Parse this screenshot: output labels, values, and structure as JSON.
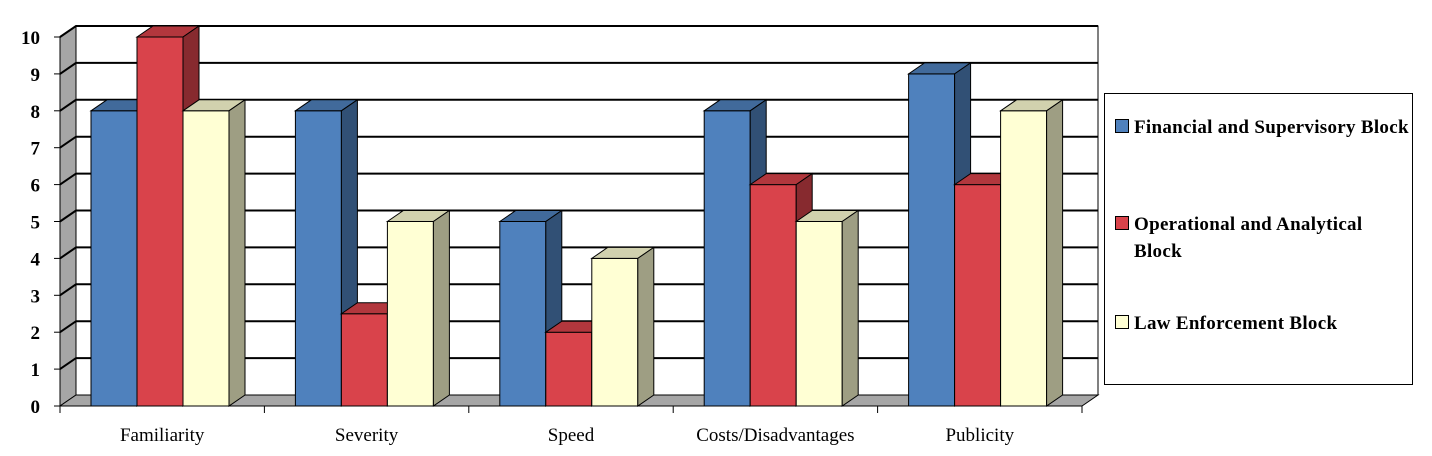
{
  "chart_data": {
    "type": "bar",
    "title": "",
    "xlabel": "",
    "ylabel": "",
    "ylim": [
      0,
      10
    ],
    "yticks": [
      0,
      1,
      2,
      3,
      4,
      5,
      6,
      7,
      8,
      9,
      10
    ],
    "grid": true,
    "legend_position": "right",
    "categories": [
      "Familiarity",
      "Severity",
      "Speed",
      "Costs/Disadvantages",
      "Publicity"
    ],
    "series": [
      {
        "name": "Financial and Supervisory Block",
        "values": [
          8,
          8,
          5,
          8,
          9
        ],
        "color": "#4f81bd"
      },
      {
        "name": "Operational and Analytical Block",
        "values": [
          10,
          2.5,
          2,
          6,
          6
        ],
        "color": "#d9434b"
      },
      {
        "name": "Law Enforcement Block",
        "values": [
          8,
          5,
          4,
          5,
          8
        ],
        "color": "#ffffd4"
      }
    ]
  },
  "legend": {
    "items": [
      {
        "label": "Financial and Supervisory Block",
        "color": "#4f81bd"
      },
      {
        "label": "Operational and Analytical Block",
        "color": "#d9434b"
      },
      {
        "label": "Law Enforcement Block",
        "color": "#ffffd4"
      }
    ]
  }
}
